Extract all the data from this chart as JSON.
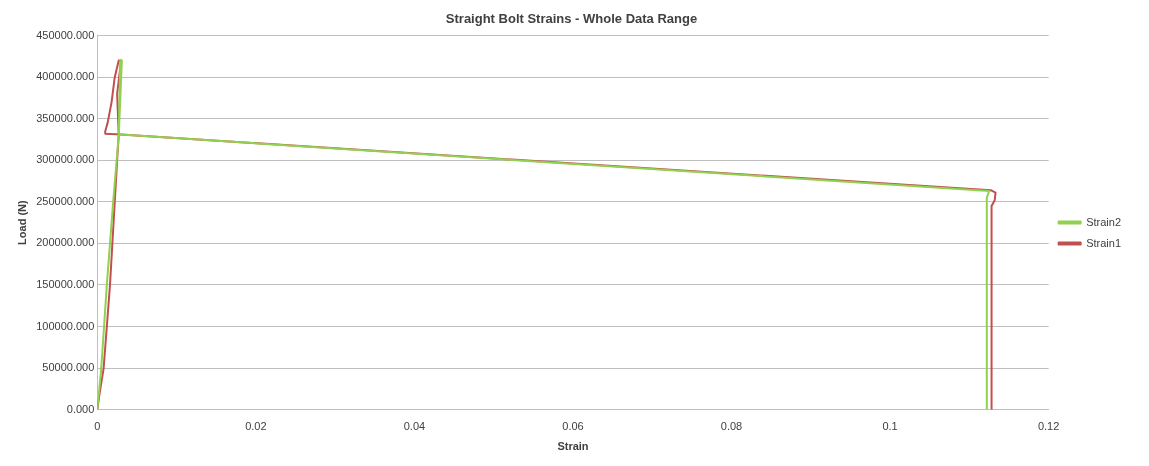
{
  "chart_data": {
    "type": "line",
    "title": "Straight Bolt Strains - Whole Data Range",
    "xlabel": "Strain",
    "ylabel": "Load (N)",
    "series": [
      {
        "name": "Strain2",
        "color": "#92d050",
        "x": [
          0,
          0.0005,
          0.0012,
          0.002,
          0.0027,
          0.0031,
          0.0029,
          0.0027,
          0.003,
          0.1125,
          0.1122,
          0.1122
        ],
        "values": [
          0,
          50000,
          150000,
          250000,
          330000,
          420000,
          420000,
          330000,
          331000,
          263000,
          255000,
          0
        ]
      },
      {
        "name": "Strain1",
        "color": "#c0504d",
        "x": [
          0,
          0.0003,
          0.0008,
          0.0012,
          0.0016,
          0.0019,
          0.0022,
          0.0025,
          0.0027,
          0.0025,
          0.003,
          0.0027,
          0.0022,
          0.0018,
          0.0013,
          0.001,
          0.001,
          0.003,
          0.1127,
          0.1133,
          0.1132,
          0.1128,
          0.1128
        ],
        "values": [
          0,
          20000,
          50000,
          100000,
          150000,
          200000,
          250000,
          300000,
          330000,
          380000,
          420000,
          420000,
          400000,
          370000,
          345000,
          335000,
          332000,
          331000,
          264000,
          261000,
          252000,
          245000,
          0
        ]
      }
    ],
    "xlim": [
      0,
      0.12
    ],
    "xticks": [
      0,
      0.02,
      0.04,
      0.06,
      0.08,
      0.1,
      0.12
    ],
    "ylim": [
      0,
      450000
    ],
    "yticks": [
      {
        "value": 0,
        "label": "0.000"
      },
      {
        "value": 50000,
        "label": "50000.000"
      },
      {
        "value": 100000,
        "label": "100000.000"
      },
      {
        "value": 150000,
        "label": "150000.000"
      },
      {
        "value": 200000,
        "label": "200000.000"
      },
      {
        "value": 250000,
        "label": "250000.000"
      },
      {
        "value": 300000,
        "label": "300000.000"
      },
      {
        "value": 350000,
        "label": "350000.000"
      },
      {
        "value": 400000,
        "label": "400000.000"
      },
      {
        "value": 450000,
        "label": "450000.000"
      }
    ],
    "grid": "y",
    "legend": "right",
    "marker": "none",
    "line_style": "solid"
  }
}
